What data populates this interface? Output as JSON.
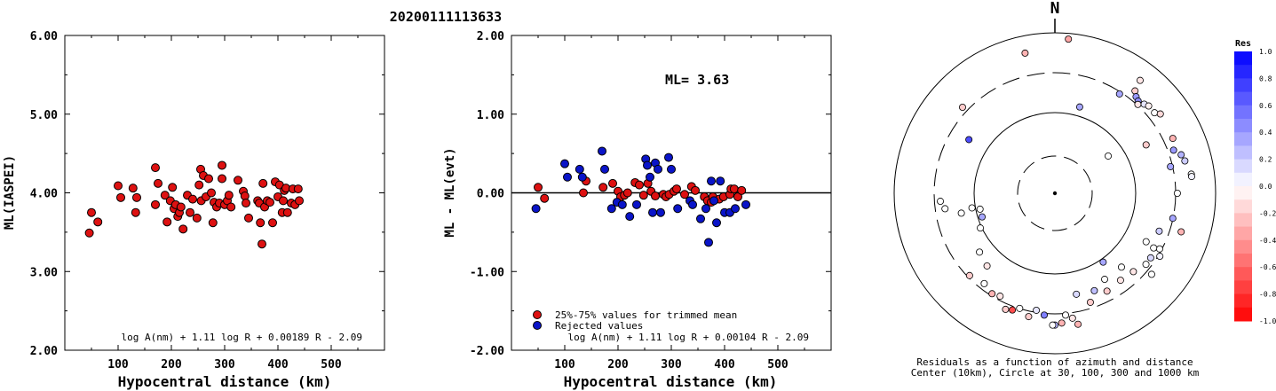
{
  "title": "20200111113633",
  "chart_data": [
    {
      "type": "scatter",
      "xlabel": "Hypocentral distance (km)",
      "ylabel": "ML(IASPEI)",
      "xlim": [
        0,
        600
      ],
      "ylim": [
        2.0,
        6.0
      ],
      "xticks": [
        "100",
        "200",
        "300",
        "400",
        "500"
      ],
      "yticks": [
        "2.00",
        "3.00",
        "4.00",
        "5.00",
        "6.00"
      ],
      "formula": "log A(nm) + 1.11 log R + 0.00189 R - 2.09",
      "series": [
        {
          "color": "#dd1111",
          "points": [
            [
              46,
              3.49
            ],
            [
              50,
              3.75
            ],
            [
              62,
              3.63
            ],
            [
              100,
              4.09
            ],
            [
              105,
              3.94
            ],
            [
              128,
              4.06
            ],
            [
              133,
              3.75
            ],
            [
              135,
              3.94
            ],
            [
              170,
              4.32
            ],
            [
              170,
              3.85
            ],
            [
              175,
              4.12
            ],
            [
              188,
              3.97
            ],
            [
              192,
              3.63
            ],
            [
              198,
              3.9
            ],
            [
              202,
              4.07
            ],
            [
              205,
              3.8
            ],
            [
              208,
              3.85
            ],
            [
              212,
              3.7
            ],
            [
              215,
              3.75
            ],
            [
              218,
              3.82
            ],
            [
              222,
              3.54
            ],
            [
              230,
              3.97
            ],
            [
              235,
              3.75
            ],
            [
              240,
              3.92
            ],
            [
              248,
              3.68
            ],
            [
              252,
              4.1
            ],
            [
              255,
              4.3
            ],
            [
              256,
              3.9
            ],
            [
              260,
              4.22
            ],
            [
              265,
              3.95
            ],
            [
              270,
              4.18
            ],
            [
              275,
              4.0
            ],
            [
              278,
              3.62
            ],
            [
              280,
              3.88
            ],
            [
              285,
              3.82
            ],
            [
              290,
              3.87
            ],
            [
              295,
              4.35
            ],
            [
              295,
              4.18
            ],
            [
              300,
              3.85
            ],
            [
              305,
              3.9
            ],
            [
              308,
              3.97
            ],
            [
              312,
              3.82
            ],
            [
              325,
              4.16
            ],
            [
              335,
              4.02
            ],
            [
              338,
              3.96
            ],
            [
              340,
              3.87
            ],
            [
              345,
              3.68
            ],
            [
              362,
              3.9
            ],
            [
              365,
              3.87
            ],
            [
              367,
              3.62
            ],
            [
              370,
              3.35
            ],
            [
              372,
              4.12
            ],
            [
              375,
              3.82
            ],
            [
              380,
              3.9
            ],
            [
              385,
              3.88
            ],
            [
              390,
              3.62
            ],
            [
              395,
              4.14
            ],
            [
              400,
              3.95
            ],
            [
              403,
              4.1
            ],
            [
              408,
              3.75
            ],
            [
              410,
              3.9
            ],
            [
              412,
              4.03
            ],
            [
              415,
              4.06
            ],
            [
              418,
              3.75
            ],
            [
              425,
              3.87
            ],
            [
              428,
              4.05
            ],
            [
              432,
              3.85
            ],
            [
              438,
              4.05
            ],
            [
              440,
              3.9
            ]
          ]
        }
      ]
    },
    {
      "type": "scatter",
      "xlabel": "Hypocentral distance (km)",
      "ylabel": "ML - ML(evt)",
      "xlim": [
        0,
        600
      ],
      "ylim": [
        -2.0,
        2.0
      ],
      "xticks": [
        "100",
        "200",
        "300",
        "400",
        "500"
      ],
      "yticks": [
        "-2.00",
        "-1.00",
        "0.00",
        "1.00",
        "2.00"
      ],
      "annotation": "ML= 3.63",
      "formula": "log A(nm) + 1.11 log R + 0.00104 R - 2.09",
      "legend": [
        "25%-75% values for trimmed mean",
        "Rejected values"
      ],
      "series": [
        {
          "name": "25%-75% values for trimmed mean",
          "color": "#dd1111",
          "points": [
            [
              50,
              0.07
            ],
            [
              62,
              -0.07
            ],
            [
              135,
              0.0
            ],
            [
              140,
              0.15
            ],
            [
              172,
              0.07
            ],
            [
              190,
              0.12
            ],
            [
              200,
              0.02
            ],
            [
              205,
              -0.05
            ],
            [
              212,
              -0.03
            ],
            [
              218,
              0.0
            ],
            [
              232,
              0.13
            ],
            [
              240,
              0.1
            ],
            [
              248,
              -0.03
            ],
            [
              256,
              0.12
            ],
            [
              262,
              0.02
            ],
            [
              270,
              -0.04
            ],
            [
              285,
              -0.02
            ],
            [
              290,
              -0.05
            ],
            [
              296,
              -0.02
            ],
            [
              305,
              0.02
            ],
            [
              310,
              0.05
            ],
            [
              325,
              -0.02
            ],
            [
              338,
              0.08
            ],
            [
              345,
              0.03
            ],
            [
              362,
              -0.05
            ],
            [
              368,
              -0.1
            ],
            [
              375,
              -0.12
            ],
            [
              378,
              -0.05
            ],
            [
              390,
              -0.08
            ],
            [
              398,
              -0.05
            ],
            [
              410,
              -0.02
            ],
            [
              412,
              0.05
            ],
            [
              418,
              0.05
            ],
            [
              425,
              -0.05
            ],
            [
              432,
              0.03
            ]
          ]
        },
        {
          "name": "Rejected values",
          "color": "#0a14c8",
          "points": [
            [
              46,
              -0.2
            ],
            [
              100,
              0.37
            ],
            [
              105,
              0.2
            ],
            [
              128,
              0.3
            ],
            [
              133,
              0.2
            ],
            [
              170,
              0.53
            ],
            [
              175,
              0.3
            ],
            [
              188,
              -0.2
            ],
            [
              198,
              -0.12
            ],
            [
              208,
              -0.15
            ],
            [
              222,
              -0.3
            ],
            [
              235,
              -0.15
            ],
            [
              252,
              0.43
            ],
            [
              255,
              0.35
            ],
            [
              260,
              0.2
            ],
            [
              265,
              -0.25
            ],
            [
              270,
              0.38
            ],
            [
              275,
              0.3
            ],
            [
              280,
              -0.25
            ],
            [
              295,
              0.45
            ],
            [
              300,
              0.3
            ],
            [
              312,
              -0.2
            ],
            [
              335,
              -0.1
            ],
            [
              340,
              -0.15
            ],
            [
              355,
              -0.33
            ],
            [
              365,
              -0.2
            ],
            [
              370,
              -0.63
            ],
            [
              375,
              0.15
            ],
            [
              380,
              -0.1
            ],
            [
              385,
              -0.38
            ],
            [
              392,
              0.15
            ],
            [
              400,
              -0.25
            ],
            [
              410,
              -0.25
            ],
            [
              420,
              -0.2
            ],
            [
              440,
              -0.15
            ]
          ]
        }
      ]
    },
    {
      "type": "scatter",
      "subtype": "polar residual plot",
      "north_label": "N",
      "caption_line1": "Residuals as a function of azimuth and distance",
      "caption_line2": "Center (10km), Circle at 30, 100, 300 and 1000 km",
      "colorbar": {
        "title": "Res",
        "ticks": [
          "1.0",
          "0.8",
          "0.6",
          "0.4",
          "0.2",
          "0.0",
          "-0.2",
          "-0.4",
          "-0.6",
          "-0.8",
          "-1.0"
        ],
        "max_color": "#0000ff",
        "mid_color": "#ffffff",
        "min_color": "#ff0000"
      },
      "points": [
        {
          "az": 5,
          "dist": 405,
          "res": -0.35
        },
        {
          "az": 348,
          "dist": 375,
          "res": -0.3
        },
        {
          "az": 313,
          "dist": 330,
          "res": -0.2
        },
        {
          "az": 302,
          "dist": 265,
          "res": 0.7
        },
        {
          "az": 16,
          "dist": 235,
          "res": 0.35
        },
        {
          "az": 33,
          "dist": 310,
          "res": 0.35
        },
        {
          "az": 37,
          "dist": 370,
          "res": -0.1
        },
        {
          "az": 38,
          "dist": 340,
          "res": -0.2
        },
        {
          "az": 40,
          "dist": 330,
          "res": 0.4
        },
        {
          "az": 42,
          "dist": 325,
          "res": 0.45
        },
        {
          "az": 43,
          "dist": 318,
          "res": -0.1
        },
        {
          "az": 45,
          "dist": 330,
          "res": 0.1
        },
        {
          "az": 47,
          "dist": 335,
          "res": -0.05
        },
        {
          "az": 51,
          "dist": 335,
          "res": 0.0
        },
        {
          "az": 53,
          "dist": 345,
          "res": -0.15
        },
        {
          "az": 62,
          "dist": 270,
          "res": -0.2
        },
        {
          "az": 55,
          "dist": 170,
          "res": 0.0
        },
        {
          "az": 65,
          "dist": 340,
          "res": -0.3
        },
        {
          "az": 70,
          "dist": 330,
          "res": 0.4
        },
        {
          "az": 73,
          "dist": 345,
          "res": 0.3
        },
        {
          "az": 76,
          "dist": 350,
          "res": 0.2
        },
        {
          "az": 82,
          "dist": 360,
          "res": 0.0
        },
        {
          "az": 83,
          "dist": 360,
          "res": 0.05
        },
        {
          "az": 77,
          "dist": 310,
          "res": 0.35
        },
        {
          "az": 90,
          "dist": 320,
          "res": 0.0
        },
        {
          "az": 107,
          "dist": 345,
          "res": -0.3
        },
        {
          "az": 102,
          "dist": 315,
          "res": 0.35
        },
        {
          "az": 110,
          "dist": 290,
          "res": 0.2
        },
        {
          "az": 118,
          "dist": 310,
          "res": 0.0
        },
        {
          "az": 119,
          "dist": 295,
          "res": 0.0
        },
        {
          "az": 121,
          "dist": 320,
          "res": 0.05
        },
        {
          "az": 124,
          "dist": 302,
          "res": 0.15
        },
        {
          "az": 118,
          "dist": 270,
          "res": 0.0
        },
        {
          "az": 128,
          "dist": 302,
          "res": 0.0
        },
        {
          "az": 130,
          "dist": 330,
          "res": 0.0
        },
        {
          "az": 135,
          "dist": 290,
          "res": -0.1
        },
        {
          "az": 138,
          "dist": 260,
          "res": 0.0
        },
        {
          "az": 143,
          "dist": 285,
          "res": -0.1
        },
        {
          "az": 150,
          "dist": 260,
          "res": 0.0
        },
        {
          "az": 152,
          "dist": 290,
          "res": -0.2
        },
        {
          "az": 145,
          "dist": 220,
          "res": 0.35
        },
        {
          "az": 158,
          "dist": 275,
          "res": 0.25
        },
        {
          "az": 162,
          "dist": 300,
          "res": -0.2
        },
        {
          "az": 168,
          "dist": 270,
          "res": 0.15
        },
        {
          "az": 170,
          "dist": 348,
          "res": -0.3
        },
        {
          "az": 172,
          "dist": 330,
          "res": -0.1
        },
        {
          "az": 175,
          "dist": 320,
          "res": 0.0
        },
        {
          "az": 177,
          "dist": 340,
          "res": -0.3
        },
        {
          "az": 180,
          "dist": 345,
          "res": 0.3
        },
        {
          "az": 181,
          "dist": 345,
          "res": 0.0
        },
        {
          "az": 185,
          "dist": 320,
          "res": 0.5
        },
        {
          "az": 189,
          "dist": 310,
          "res": 0.1
        },
        {
          "az": 192,
          "dist": 330,
          "res": -0.2
        },
        {
          "az": 197,
          "dist": 315,
          "res": 0.0
        },
        {
          "az": 200,
          "dist": 325,
          "res": -0.7
        },
        {
          "az": 203,
          "dist": 330,
          "res": -0.2
        },
        {
          "az": 208,
          "dist": 305,
          "res": -0.1
        },
        {
          "az": 212,
          "dist": 310,
          "res": -0.3
        },
        {
          "az": 218,
          "dist": 300,
          "res": 0.0
        },
        {
          "az": 223,
          "dist": 260,
          "res": -0.1
        },
        {
          "az": 226,
          "dist": 310,
          "res": -0.2
        },
        {
          "az": 232,
          "dist": 250,
          "res": 0.0
        },
        {
          "az": 245,
          "dist": 215,
          "res": 0.0
        },
        {
          "az": 252,
          "dist": 200,
          "res": 0.35
        },
        {
          "az": 258,
          "dist": 200,
          "res": 0.0
        },
        {
          "az": 258,
          "dist": 250,
          "res": 0.0
        },
        {
          "az": 260,
          "dist": 220,
          "res": 0.0
        },
        {
          "az": 262,
          "dist": 290,
          "res": 0.0
        },
        {
          "az": 266,
          "dist": 300,
          "res": 0.0
        }
      ]
    }
  ]
}
